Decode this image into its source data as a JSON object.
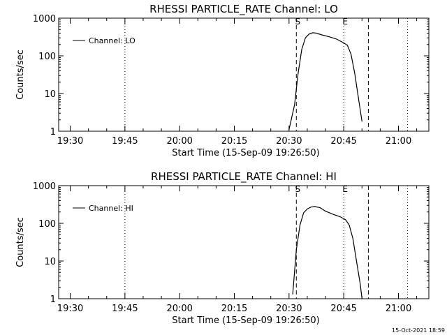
{
  "footer": {
    "timestamp": "15-Oct-2021 18:59"
  },
  "chart_data": [
    {
      "type": "line",
      "title": "RHESSI PARTICLE_RATE Channel: LO",
      "xlabel": "Start Time (15-Sep-09 19:26:50)",
      "ylabel": "Counts/sec",
      "yscale": "log",
      "ylim": [
        1,
        1000
      ],
      "xlim": [
        "19:26:50",
        "21:08:20"
      ],
      "xticks": [
        "19:30",
        "19:45",
        "20:00",
        "20:15",
        "20:30",
        "20:45",
        "21:00"
      ],
      "yticks": [
        "1",
        "10",
        "100",
        "1000"
      ],
      "legend": {
        "label": "Channel: LO",
        "placement": "top-left"
      },
      "markers": [
        {
          "label": "S",
          "time": "20:32:00",
          "style": "dashed"
        },
        {
          "label": "E",
          "time": "20:45:00",
          "style": "dotted"
        },
        {
          "label": "",
          "time": "20:51:45",
          "style": "dashed"
        },
        {
          "label": "",
          "time": "19:45:00",
          "style": "dotted"
        },
        {
          "label": "",
          "time": "21:02:30",
          "style": "dotted"
        }
      ],
      "series": [
        {
          "name": "Channel: LO",
          "x": [
            "20:30:00",
            "20:31:30",
            "20:32:30",
            "20:33:30",
            "20:34:30",
            "20:35:30",
            "20:36:30",
            "20:37:30",
            "20:39:00",
            "20:41:00",
            "20:43:00",
            "20:45:00",
            "20:46:00",
            "20:47:00",
            "20:48:00",
            "20:49:00",
            "20:50:00"
          ],
          "y": [
            1.1,
            5,
            35,
            150,
            300,
            380,
            410,
            400,
            360,
            320,
            280,
            220,
            190,
            110,
            35,
            8,
            1.8
          ]
        }
      ]
    },
    {
      "type": "line",
      "title": "RHESSI PARTICLE_RATE Channel: HI",
      "xlabel": "Start Time (15-Sep-09 19:26:50)",
      "ylabel": "Counts/sec",
      "yscale": "log",
      "ylim": [
        1,
        1000
      ],
      "xlim": [
        "19:26:50",
        "21:08:20"
      ],
      "xticks": [
        "19:30",
        "19:45",
        "20:00",
        "20:15",
        "20:30",
        "20:45",
        "21:00"
      ],
      "yticks": [
        "1",
        "10",
        "100",
        "1000"
      ],
      "legend": {
        "label": "Channel: HI",
        "placement": "top-left"
      },
      "markers": [
        {
          "label": "S",
          "time": "20:32:00",
          "style": "dashed"
        },
        {
          "label": "E",
          "time": "20:45:00",
          "style": "dotted"
        },
        {
          "label": "",
          "time": "20:51:45",
          "style": "dashed"
        },
        {
          "label": "",
          "time": "19:45:00",
          "style": "dotted"
        },
        {
          "label": "",
          "time": "21:02:30",
          "style": "dotted"
        }
      ],
      "series": [
        {
          "name": "Channel: HI",
          "x": [
            "20:31:00",
            "20:32:00",
            "20:33:00",
            "20:34:00",
            "20:35:00",
            "20:36:00",
            "20:37:00",
            "20:38:30",
            "20:40:00",
            "20:42:00",
            "20:44:00",
            "20:45:30",
            "20:46:30",
            "20:47:30",
            "20:48:30",
            "20:49:30",
            "20:50:00"
          ],
          "y": [
            1.3,
            20,
            90,
            190,
            240,
            270,
            280,
            260,
            210,
            175,
            150,
            125,
            90,
            40,
            10,
            2.5,
            1
          ]
        }
      ]
    }
  ]
}
